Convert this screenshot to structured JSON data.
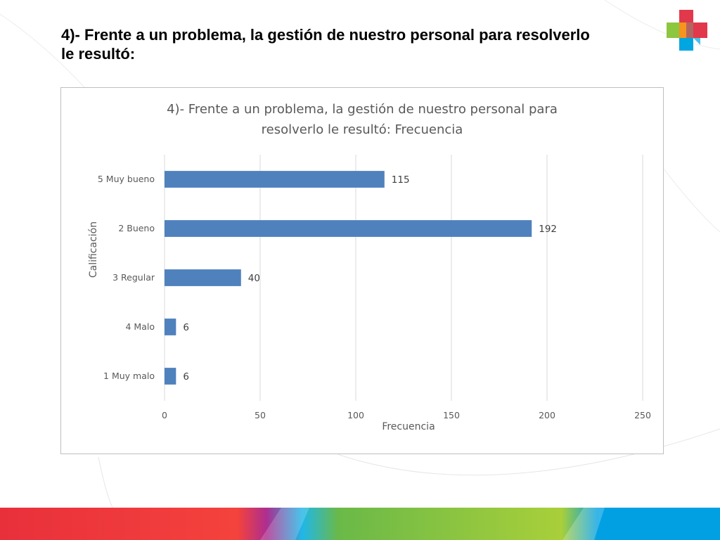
{
  "slide": {
    "title": "4)- Frente a un problema, la gestión de nuestro personal para resolverlo le resultó:"
  },
  "logo": {
    "icon": "cross-logo-icon",
    "colors": [
      "#e2384b",
      "#8dc63f",
      "#00a6e0",
      "#f7941d",
      "#7b3f98"
    ]
  },
  "colors": {
    "bar": "#4f81bd",
    "grid": "#d9d9d9",
    "band": [
      "#e8303b",
      "#f4423c",
      "#ae2e8f",
      "#20b7e8",
      "#6ab948",
      "#a9cf3a",
      "#00a0e3"
    ]
  },
  "chart_data": {
    "type": "bar",
    "orientation": "horizontal",
    "title": [
      "4)- Frente a un problema, la gestión de nuestro personal para",
      "resolverlo le resultó: Frecuencia"
    ],
    "categories": [
      "5 Muy bueno",
      "2 Bueno",
      "3 Regular",
      "4 Malo",
      "1 Muy malo"
    ],
    "values": [
      115,
      192,
      40,
      6,
      6
    ],
    "xlabel": "Frecuencia",
    "ylabel": "Calificación",
    "xlim": [
      0,
      250
    ],
    "xticks": [
      0,
      50,
      100,
      150,
      200,
      250
    ],
    "grid": true,
    "data_labels": true,
    "legend": "none"
  }
}
